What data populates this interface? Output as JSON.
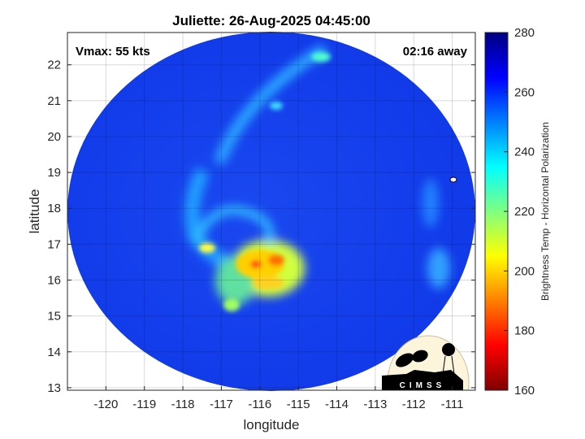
{
  "title": "Juliette: 26-Aug-2025 04:45:00",
  "annotations": {
    "vmax": "Vmax: 55 kts",
    "time_away": "02:16 away"
  },
  "axes": {
    "xlabel": "longitude",
    "ylabel": "latitude",
    "xlim": [
      -121.0,
      -110.4
    ],
    "ylim": [
      12.93,
      22.9
    ],
    "xticks": [
      "-120",
      "-119",
      "-118",
      "-117",
      "-116",
      "-115",
      "-114",
      "-113",
      "-112",
      "-111"
    ],
    "yticks": [
      "13",
      "14",
      "15",
      "16",
      "17",
      "18",
      "19",
      "20",
      "21",
      "22"
    ],
    "grid": true
  },
  "colorbar": {
    "label": "Brightness Temp - Horizontal Polarization",
    "range": [
      160,
      280
    ],
    "ticks": [
      "160",
      "180",
      "200",
      "220",
      "240",
      "260",
      "280"
    ],
    "colormap": "jet"
  },
  "logo": {
    "text": "CIMSS"
  },
  "colors": {
    "background_disc": "#1a40f0",
    "convection_core": "#f04010"
  }
}
